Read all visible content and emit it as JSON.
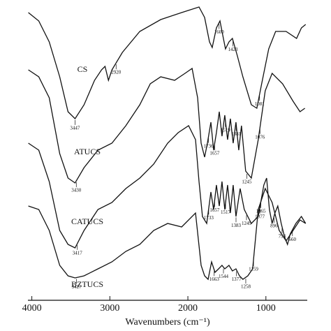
{
  "chart_data": {
    "type": "line",
    "x_label": "Wavenumbers (cm⁻¹)",
    "xlim": [
      4050,
      470
    ],
    "xticks": [
      4000,
      3000,
      2000,
      1000
    ],
    "ylim": [
      0,
      430
    ],
    "color": "#111111",
    "series": [
      {
        "name": "CS",
        "x": [
          4045,
          3911,
          3777,
          3643,
          3536,
          3446,
          3330,
          3196,
          3107,
          3062,
          3018,
          2973,
          2839,
          2616,
          2348,
          2080,
          1857,
          1786,
          1723,
          1688,
          1634,
          1589,
          1545,
          1518,
          1473,
          1429,
          1366,
          1295,
          1187,
          1116,
          1054,
          964,
          875,
          741,
          607,
          545,
          491
        ],
        "values": [
          412,
          400,
          370,
          320,
          270,
          260,
          280,
          315,
          330,
          335,
          315,
          330,
          355,
          385,
          402,
          412,
          420,
          405,
          370,
          362,
          390,
          400,
          375,
          360,
          370,
          375,
          350,
          320,
          280,
          275,
          310,
          360,
          385,
          385,
          375,
          390,
          395
        ],
        "peaks": [
          3447,
          2920,
          1600,
          1423,
          1081
        ]
      },
      {
        "name": "ATUCS",
        "x": [
          4045,
          3911,
          3777,
          3643,
          3536,
          3446,
          3330,
          3152,
          2973,
          2795,
          2616,
          2482,
          2348,
          2170,
          2036,
          1946,
          1875,
          1830,
          1786,
          1750,
          1705,
          1670,
          1634,
          1598,
          1563,
          1527,
          1491,
          1455,
          1420,
          1384,
          1348,
          1313,
          1259,
          1187,
          1098,
          1009,
          920,
          786,
          652,
          563,
          500
        ],
        "values": [
          330,
          320,
          290,
          210,
          175,
          168,
          190,
          215,
          225,
          250,
          280,
          310,
          320,
          315,
          325,
          332,
          290,
          225,
          205,
          225,
          255,
          215,
          240,
          270,
          235,
          265,
          230,
          260,
          225,
          255,
          215,
          250,
          185,
          175,
          230,
          300,
          325,
          310,
          285,
          270,
          275
        ],
        "peaks": [
          3430,
          1736,
          1657,
          1519,
          1381,
          1245,
          1076
        ]
      },
      {
        "name": "CATUCS",
        "x": [
          4045,
          3911,
          3777,
          3643,
          3536,
          3446,
          3330,
          3152,
          2973,
          2795,
          2616,
          2438,
          2259,
          2125,
          1991,
          1902,
          1857,
          1813,
          1759,
          1705,
          1670,
          1634,
          1598,
          1563,
          1527,
          1491,
          1455,
          1420,
          1384,
          1330,
          1277,
          1187,
          1098,
          1027,
          991,
          955,
          920,
          884,
          848,
          804,
          759,
          723,
          688,
          616,
          545,
          491
        ],
        "values": [
          225,
          215,
          170,
          100,
          80,
          75,
          100,
          130,
          140,
          160,
          175,
          195,
          225,
          240,
          250,
          230,
          170,
          120,
          110,
          155,
          130,
          165,
          135,
          170,
          130,
          165,
          125,
          165,
          120,
          160,
          130,
          110,
          120,
          165,
          175,
          130,
          110,
          125,
          135,
          110,
          90,
          80,
          95,
          110,
          120,
          110
        ],
        "peaks": [
          3417,
          1733,
          1657,
          1517,
          1383,
          1249,
          1077,
          896,
          793,
          660
        ]
      },
      {
        "name": "BZTUCS",
        "x": [
          4045,
          3911,
          3777,
          3643,
          3536,
          3446,
          3330,
          3152,
          2973,
          2795,
          2616,
          2438,
          2259,
          2080,
          1902,
          1830,
          1786,
          1741,
          1696,
          1652,
          1607,
          1563,
          1527,
          1473,
          1429,
          1384,
          1339,
          1295,
          1232,
          1170,
          1098,
          1009,
          920,
          830,
          741,
          652,
          563,
          491
        ],
        "values": [
          135,
          130,
          100,
          50,
          35,
          32,
          35,
          45,
          55,
          70,
          80,
          100,
          110,
          105,
          125,
          50,
          35,
          30,
          55,
          40,
          45,
          50,
          45,
          50,
          42,
          45,
          35,
          30,
          35,
          45,
          130,
          160,
          140,
          100,
          85,
          100,
          115,
          110
        ],
        "peaks": [
          3427,
          1663,
          1544,
          1377,
          1258,
          1159,
          1065
        ]
      }
    ]
  }
}
